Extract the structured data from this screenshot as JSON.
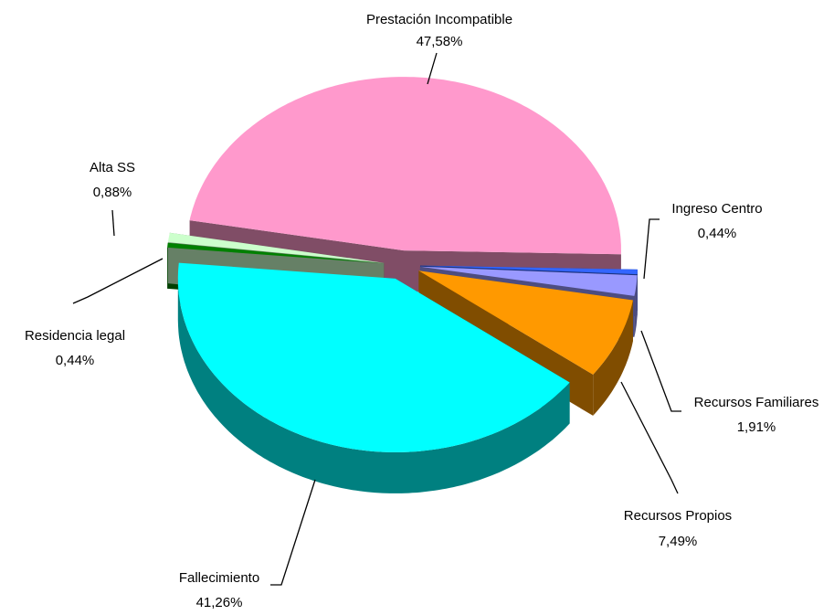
{
  "chart_data": {
    "type": "pie",
    "categories": [
      "Prestación Incompatible",
      "Ingreso Centro",
      "Recursos Familiares",
      "Recursos Propios",
      "Fallecimiento",
      "Residencia legal",
      "Alta SS"
    ],
    "values": [
      47.58,
      0.44,
      1.91,
      7.49,
      41.26,
      0.44,
      0.88
    ],
    "value_labels": [
      "47,58%",
      "0,44%",
      "1,91%",
      "7,49%",
      "41,26%",
      "0,44%",
      "0,88%"
    ],
    "colors": [
      "#ff99cc",
      "#3366ff",
      "#9999ff",
      "#ff9900",
      "#00ffff",
      "#008000",
      "#ccffcc"
    ]
  }
}
